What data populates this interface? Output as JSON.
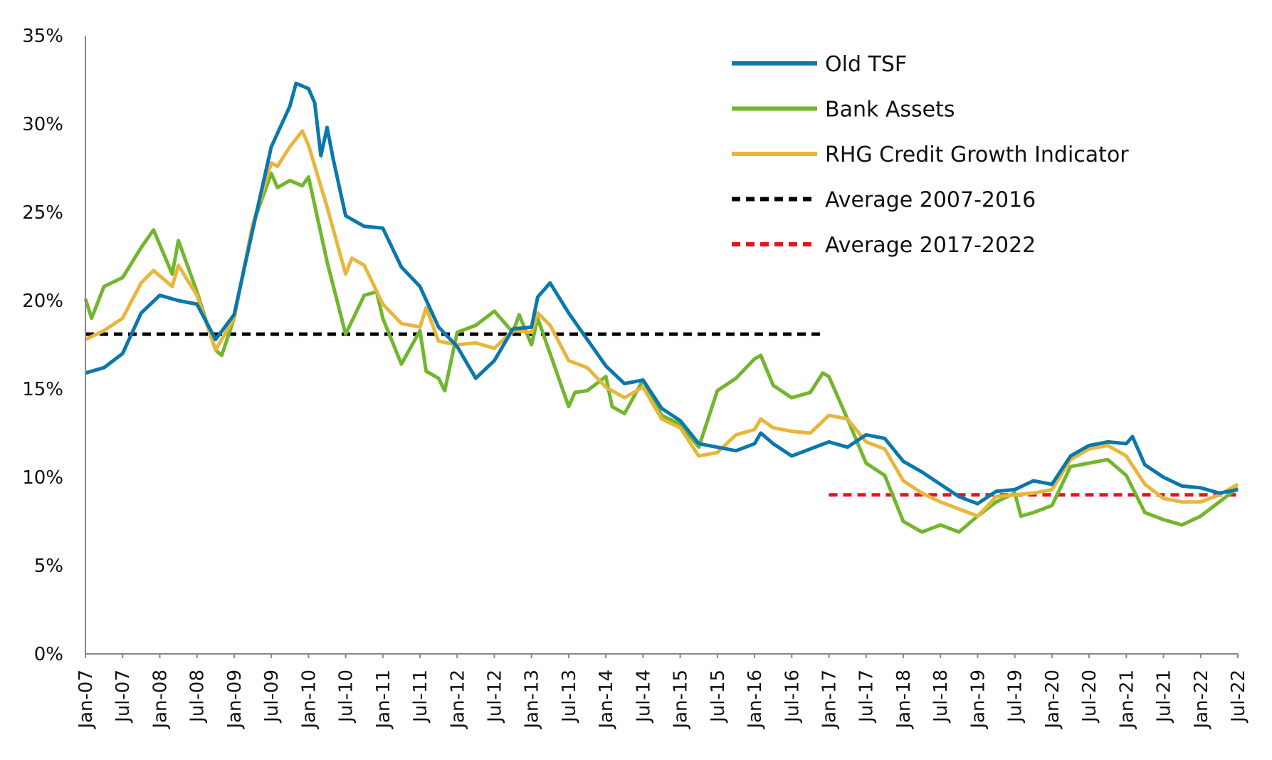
{
  "chart_data": {
    "type": "line",
    "title": "",
    "xlabel": "",
    "ylabel": "",
    "ylim": [
      0,
      35
    ],
    "y_ticks": [
      "0%",
      "5%",
      "10%",
      "15%",
      "20%",
      "25%",
      "30%",
      "35%"
    ],
    "x_range": [
      "2007-01",
      "2022-07"
    ],
    "x_ticks": [
      "Jan-07",
      "Jul-07",
      "Jan-08",
      "Jul-08",
      "Jan-09",
      "Jul-09",
      "Jan-10",
      "Jul-10",
      "Jan-11",
      "Jul-11",
      "Jan-12",
      "Jul-12",
      "Jan-13",
      "Jul-13",
      "Jan-14",
      "Jul-14",
      "Jan-15",
      "Jul-15",
      "Jan-16",
      "Jul-16",
      "Jan-17",
      "Jul-17",
      "Jan-18",
      "Jul-18",
      "Jan-19",
      "Jul-19",
      "Jan-20",
      "Jul-20",
      "Jan-21",
      "Jul-21",
      "Jan-22",
      "Jul-22"
    ],
    "grid": false,
    "legend_position": "top-right",
    "series": [
      {
        "name": "Old TSF",
        "color": "#0a78ad",
        "style": "solid",
        "points": [
          [
            "2007-01",
            15.9
          ],
          [
            "2007-04",
            16.2
          ],
          [
            "2007-07",
            17.0
          ],
          [
            "2007-10",
            19.3
          ],
          [
            "2008-01",
            20.3
          ],
          [
            "2008-04",
            20.0
          ],
          [
            "2008-07",
            19.8
          ],
          [
            "2008-10",
            17.8
          ],
          [
            "2009-01",
            19.2
          ],
          [
            "2009-04",
            24.0
          ],
          [
            "2009-07",
            28.7
          ],
          [
            "2009-10",
            31.0
          ],
          [
            "2009-11",
            32.3
          ],
          [
            "2010-01",
            32.0
          ],
          [
            "2010-02",
            31.2
          ],
          [
            "2010-03",
            28.2
          ],
          [
            "2010-04",
            29.8
          ],
          [
            "2010-05",
            28.0
          ],
          [
            "2010-07",
            24.8
          ],
          [
            "2010-10",
            24.2
          ],
          [
            "2011-01",
            24.1
          ],
          [
            "2011-04",
            21.9
          ],
          [
            "2011-07",
            20.8
          ],
          [
            "2011-10",
            18.5
          ],
          [
            "2012-01",
            17.4
          ],
          [
            "2012-04",
            15.6
          ],
          [
            "2012-07",
            16.6
          ],
          [
            "2012-10",
            18.4
          ],
          [
            "2013-01",
            18.5
          ],
          [
            "2013-02",
            20.2
          ],
          [
            "2013-04",
            21.0
          ],
          [
            "2013-07",
            19.3
          ],
          [
            "2013-10",
            17.8
          ],
          [
            "2014-01",
            16.3
          ],
          [
            "2014-04",
            15.3
          ],
          [
            "2014-07",
            15.5
          ],
          [
            "2014-10",
            13.9
          ],
          [
            "2015-01",
            13.2
          ],
          [
            "2015-04",
            11.9
          ],
          [
            "2015-07",
            11.7
          ],
          [
            "2015-10",
            11.5
          ],
          [
            "2016-01",
            11.9
          ],
          [
            "2016-02",
            12.5
          ],
          [
            "2016-04",
            11.9
          ],
          [
            "2016-07",
            11.2
          ],
          [
            "2016-10",
            11.6
          ],
          [
            "2017-01",
            12.0
          ],
          [
            "2017-04",
            11.7
          ],
          [
            "2017-07",
            12.4
          ],
          [
            "2017-10",
            12.2
          ],
          [
            "2018-01",
            10.9
          ],
          [
            "2018-04",
            10.3
          ],
          [
            "2018-07",
            9.6
          ],
          [
            "2018-10",
            8.9
          ],
          [
            "2019-01",
            8.5
          ],
          [
            "2019-04",
            9.2
          ],
          [
            "2019-07",
            9.3
          ],
          [
            "2019-10",
            9.8
          ],
          [
            "2020-01",
            9.6
          ],
          [
            "2020-04",
            11.2
          ],
          [
            "2020-07",
            11.8
          ],
          [
            "2020-10",
            12.0
          ],
          [
            "2021-01",
            11.9
          ],
          [
            "2021-02",
            12.3
          ],
          [
            "2021-04",
            10.7
          ],
          [
            "2021-07",
            10.0
          ],
          [
            "2021-10",
            9.5
          ],
          [
            "2022-01",
            9.4
          ],
          [
            "2022-04",
            9.1
          ],
          [
            "2022-07",
            9.3
          ]
        ]
      },
      {
        "name": "Bank Assets",
        "color": "#72b62e",
        "style": "solid",
        "points": [
          [
            "2007-01",
            20.1
          ],
          [
            "2007-02",
            19.0
          ],
          [
            "2007-04",
            20.8
          ],
          [
            "2007-07",
            21.3
          ],
          [
            "2007-10",
            23.0
          ],
          [
            "2007-12",
            24.0
          ],
          [
            "2008-03",
            21.5
          ],
          [
            "2008-04",
            23.4
          ],
          [
            "2008-07",
            20.5
          ],
          [
            "2008-10",
            17.2
          ],
          [
            "2008-11",
            16.9
          ],
          [
            "2009-01",
            19.0
          ],
          [
            "2009-04",
            24.3
          ],
          [
            "2009-07",
            27.2
          ],
          [
            "2009-08",
            26.4
          ],
          [
            "2009-10",
            26.8
          ],
          [
            "2009-12",
            26.5
          ],
          [
            "2010-01",
            27.0
          ],
          [
            "2010-04",
            22.2
          ],
          [
            "2010-07",
            18.1
          ],
          [
            "2010-10",
            20.3
          ],
          [
            "2010-12",
            20.5
          ],
          [
            "2011-01",
            19.0
          ],
          [
            "2011-04",
            16.4
          ],
          [
            "2011-07",
            18.3
          ],
          [
            "2011-08",
            16.0
          ],
          [
            "2011-10",
            15.6
          ],
          [
            "2011-11",
            14.9
          ],
          [
            "2012-01",
            18.2
          ],
          [
            "2012-04",
            18.6
          ],
          [
            "2012-07",
            19.4
          ],
          [
            "2012-10",
            18.2
          ],
          [
            "2012-11",
            19.2
          ],
          [
            "2013-01",
            17.5
          ],
          [
            "2013-02",
            19.0
          ],
          [
            "2013-04",
            17.0
          ],
          [
            "2013-07",
            14.0
          ],
          [
            "2013-08",
            14.8
          ],
          [
            "2013-10",
            14.9
          ],
          [
            "2014-01",
            15.7
          ],
          [
            "2014-02",
            14.0
          ],
          [
            "2014-04",
            13.6
          ],
          [
            "2014-07",
            15.5
          ],
          [
            "2014-10",
            13.5
          ],
          [
            "2015-01",
            13.0
          ],
          [
            "2015-04",
            11.7
          ],
          [
            "2015-07",
            14.9
          ],
          [
            "2015-10",
            15.6
          ],
          [
            "2016-01",
            16.7
          ],
          [
            "2016-02",
            16.9
          ],
          [
            "2016-04",
            15.2
          ],
          [
            "2016-07",
            14.5
          ],
          [
            "2016-10",
            14.8
          ],
          [
            "2016-12",
            15.9
          ],
          [
            "2017-01",
            15.7
          ],
          [
            "2017-04",
            13.3
          ],
          [
            "2017-07",
            10.8
          ],
          [
            "2017-10",
            10.1
          ],
          [
            "2018-01",
            7.5
          ],
          [
            "2018-04",
            6.9
          ],
          [
            "2018-07",
            7.3
          ],
          [
            "2018-10",
            6.9
          ],
          [
            "2019-01",
            7.8
          ],
          [
            "2019-04",
            8.6
          ],
          [
            "2019-07",
            9.1
          ],
          [
            "2019-08",
            7.8
          ],
          [
            "2019-10",
            8.0
          ],
          [
            "2020-01",
            8.4
          ],
          [
            "2020-04",
            10.6
          ],
          [
            "2020-07",
            10.8
          ],
          [
            "2020-10",
            11.0
          ],
          [
            "2021-01",
            10.1
          ],
          [
            "2021-04",
            8.0
          ],
          [
            "2021-07",
            7.6
          ],
          [
            "2021-10",
            7.3
          ],
          [
            "2022-01",
            7.8
          ],
          [
            "2022-04",
            8.6
          ],
          [
            "2022-07",
            9.4
          ]
        ]
      },
      {
        "name": "RHG Credit Growth Indicator",
        "color": "#e8b63c",
        "style": "solid",
        "points": [
          [
            "2007-01",
            17.8
          ],
          [
            "2007-04",
            18.3
          ],
          [
            "2007-07",
            19.0
          ],
          [
            "2007-10",
            21.0
          ],
          [
            "2007-12",
            21.7
          ],
          [
            "2008-03",
            20.8
          ],
          [
            "2008-04",
            22.0
          ],
          [
            "2008-07",
            20.3
          ],
          [
            "2008-10",
            17.2
          ],
          [
            "2009-01",
            19.0
          ],
          [
            "2009-04",
            24.3
          ],
          [
            "2009-07",
            27.8
          ],
          [
            "2009-08",
            27.6
          ],
          [
            "2009-10",
            28.7
          ],
          [
            "2009-12",
            29.6
          ],
          [
            "2010-01",
            28.8
          ],
          [
            "2010-04",
            25.3
          ],
          [
            "2010-07",
            21.5
          ],
          [
            "2010-08",
            22.4
          ],
          [
            "2010-10",
            22.0
          ],
          [
            "2011-01",
            19.8
          ],
          [
            "2011-04",
            18.7
          ],
          [
            "2011-07",
            18.5
          ],
          [
            "2011-08",
            19.6
          ],
          [
            "2011-10",
            17.7
          ],
          [
            "2012-01",
            17.5
          ],
          [
            "2012-04",
            17.6
          ],
          [
            "2012-07",
            17.3
          ],
          [
            "2012-10",
            18.3
          ],
          [
            "2013-01",
            18.2
          ],
          [
            "2013-02",
            19.3
          ],
          [
            "2013-04",
            18.6
          ],
          [
            "2013-07",
            16.6
          ],
          [
            "2013-10",
            16.2
          ],
          [
            "2014-01",
            15.1
          ],
          [
            "2014-04",
            14.5
          ],
          [
            "2014-07",
            15.1
          ],
          [
            "2014-10",
            13.3
          ],
          [
            "2015-01",
            12.8
          ],
          [
            "2015-04",
            11.2
          ],
          [
            "2015-07",
            11.4
          ],
          [
            "2015-10",
            12.4
          ],
          [
            "2016-01",
            12.7
          ],
          [
            "2016-02",
            13.3
          ],
          [
            "2016-04",
            12.8
          ],
          [
            "2016-07",
            12.6
          ],
          [
            "2016-10",
            12.5
          ],
          [
            "2017-01",
            13.5
          ],
          [
            "2017-04",
            13.3
          ],
          [
            "2017-07",
            12.0
          ],
          [
            "2017-10",
            11.6
          ],
          [
            "2018-01",
            9.8
          ],
          [
            "2018-04",
            9.1
          ],
          [
            "2018-07",
            8.6
          ],
          [
            "2018-10",
            8.2
          ],
          [
            "2019-01",
            7.8
          ],
          [
            "2019-04",
            8.9
          ],
          [
            "2019-07",
            9.0
          ],
          [
            "2019-10",
            9.1
          ],
          [
            "2020-01",
            9.3
          ],
          [
            "2020-04",
            11.0
          ],
          [
            "2020-07",
            11.6
          ],
          [
            "2020-10",
            11.8
          ],
          [
            "2021-01",
            11.2
          ],
          [
            "2021-04",
            9.6
          ],
          [
            "2021-07",
            8.8
          ],
          [
            "2021-10",
            8.6
          ],
          [
            "2022-01",
            8.6
          ],
          [
            "2022-04",
            9.0
          ],
          [
            "2022-07",
            9.6
          ]
        ]
      },
      {
        "name": "Average 2007-2016",
        "color": "#000000",
        "style": "dashed",
        "points": [
          [
            "2007-01",
            18.1
          ],
          [
            "2016-12",
            18.1
          ]
        ]
      },
      {
        "name": "Average 2017-2022",
        "color": "#e8141b",
        "style": "dashed",
        "points": [
          [
            "2017-01",
            9.0
          ],
          [
            "2022-07",
            9.0
          ]
        ]
      }
    ]
  }
}
